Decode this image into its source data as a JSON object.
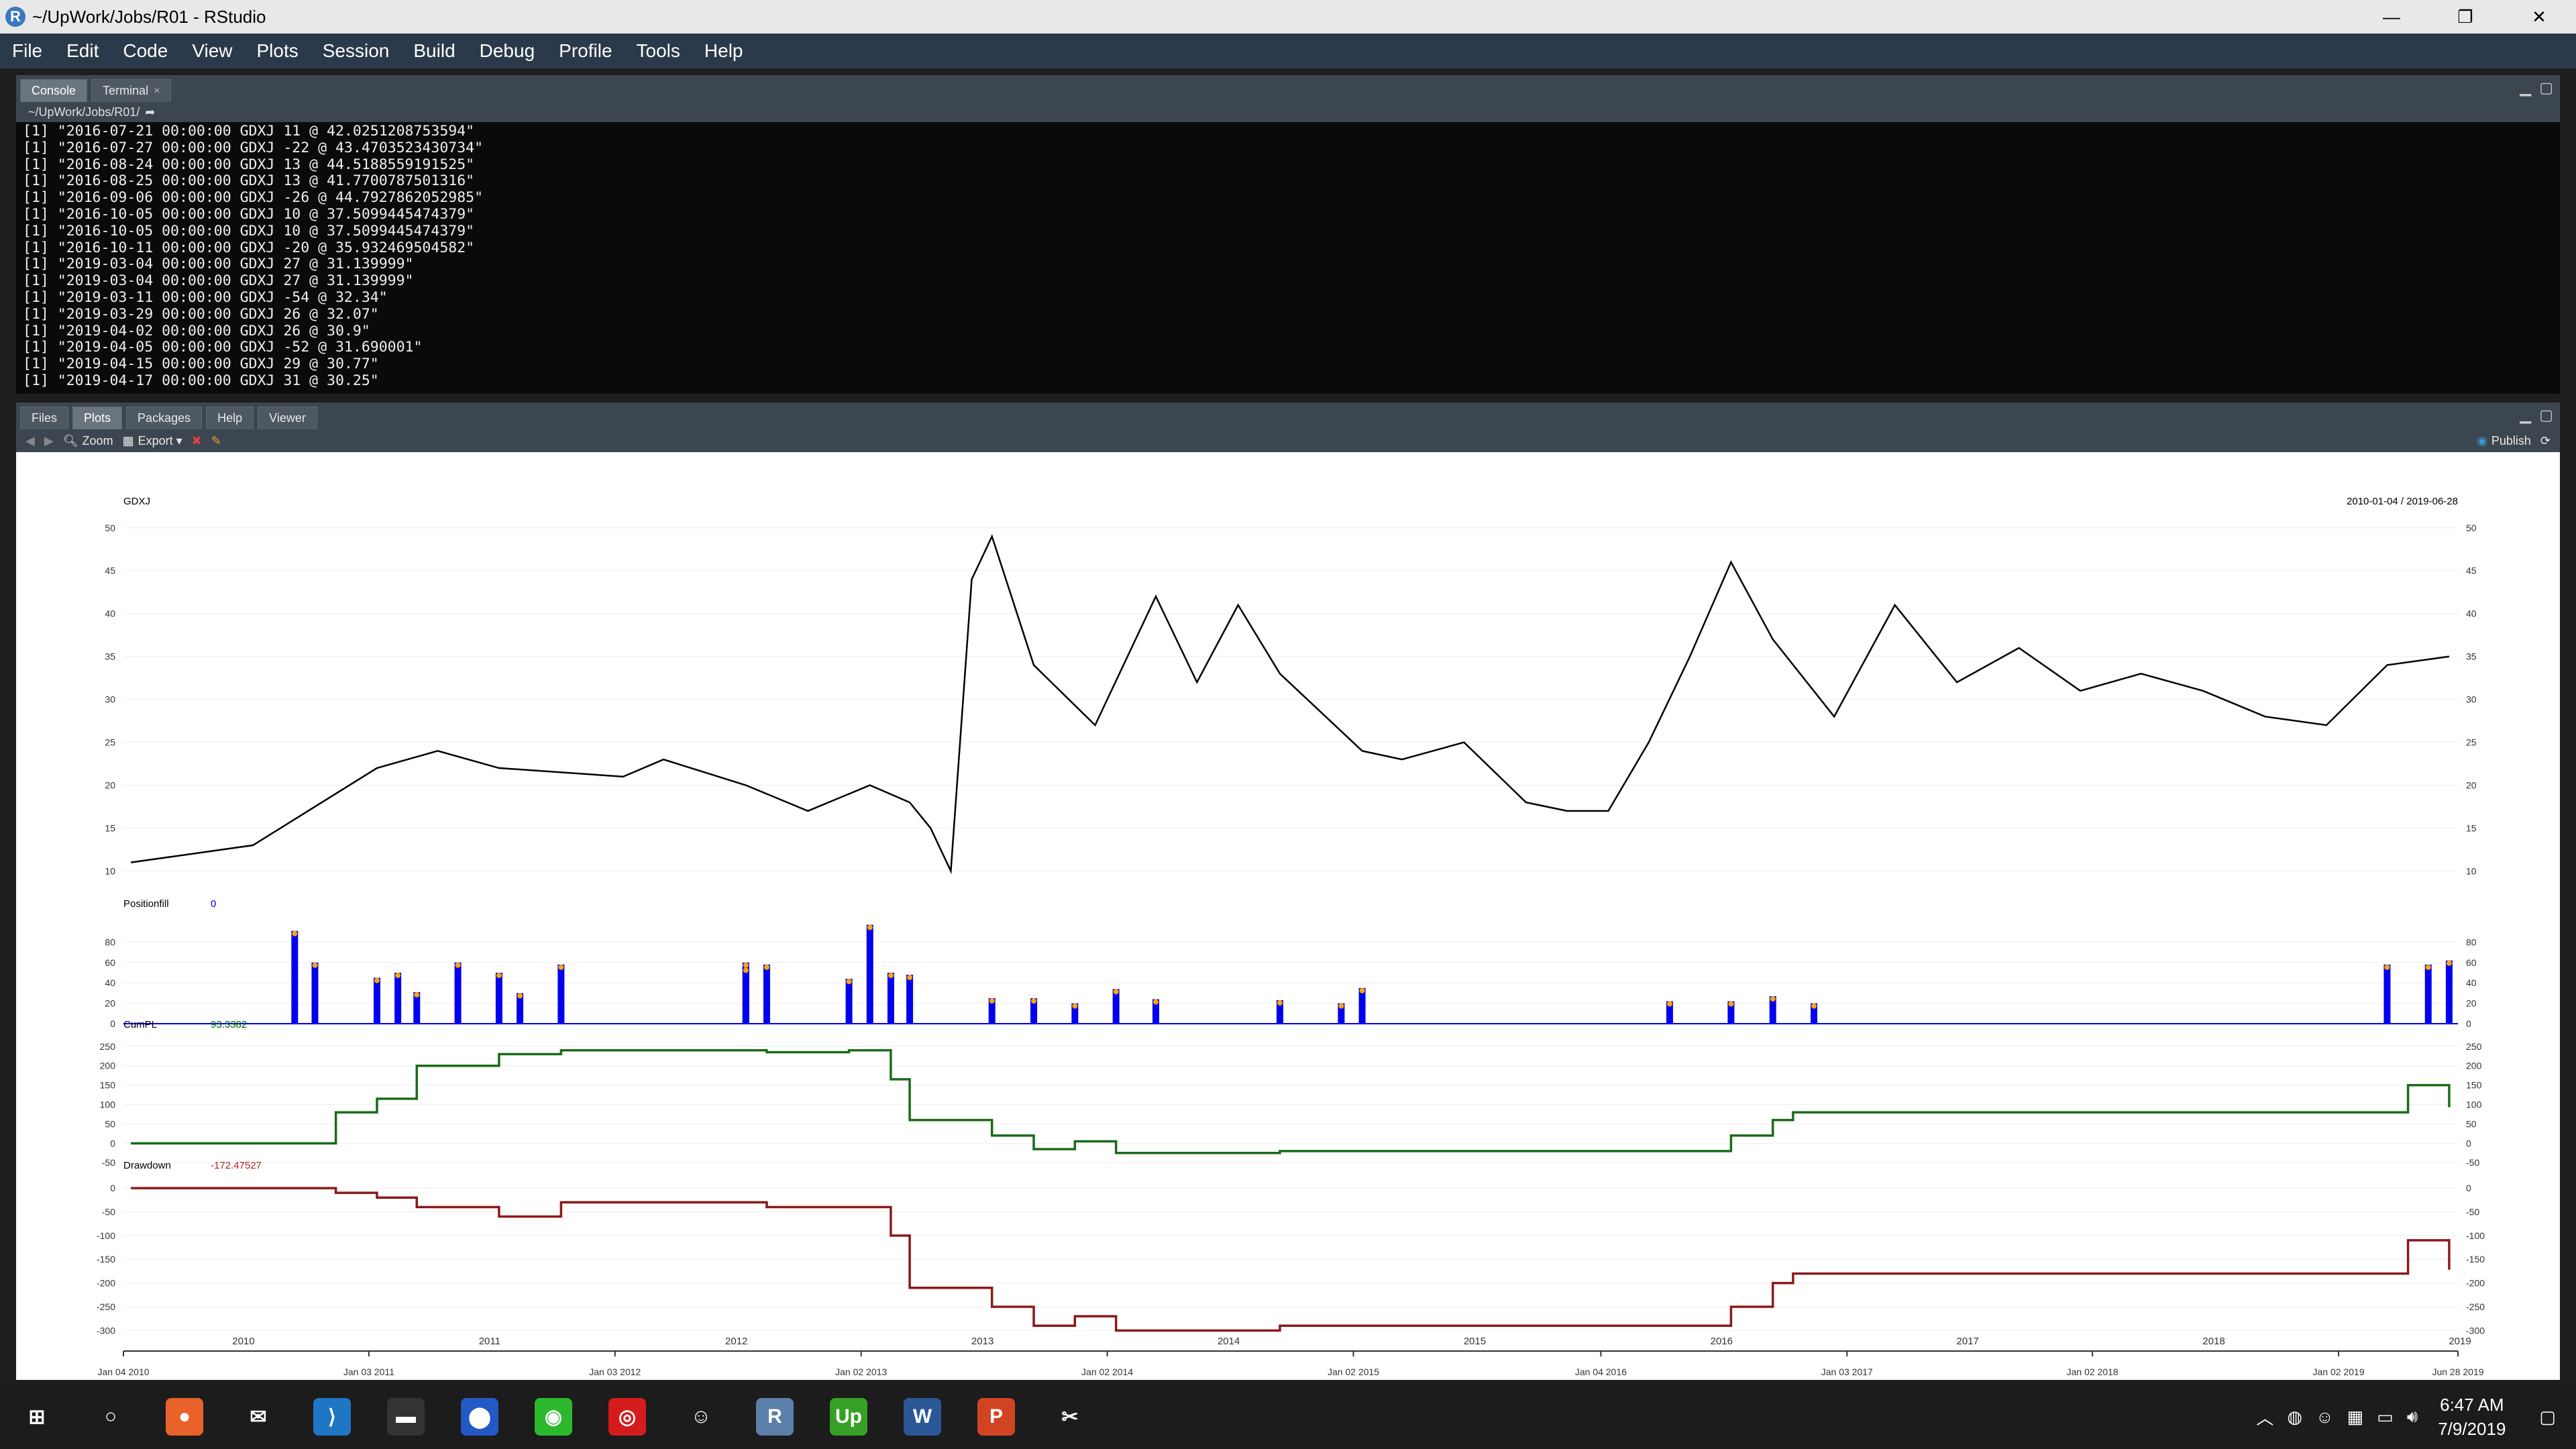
{
  "window": {
    "title": "~/UpWork/Jobs/R01 - RStudio",
    "logo": "R",
    "minimize": "—",
    "maximize": "❐",
    "close": "✕"
  },
  "menu": [
    "File",
    "Edit",
    "Code",
    "View",
    "Plots",
    "Session",
    "Build",
    "Debug",
    "Profile",
    "Tools",
    "Help"
  ],
  "console_tabs": [
    {
      "label": "Console"
    },
    {
      "label": "Terminal",
      "close": "×"
    }
  ],
  "console_path": "~/UpWork/Jobs/R01/",
  "console_lines": [
    "[1] \"2016-07-21 00:00:00 GDXJ 11 @ 42.0251208753594\"",
    "[1] \"2016-07-27 00:00:00 GDXJ -22 @ 43.4703523430734\"",
    "[1] \"2016-08-24 00:00:00 GDXJ 13 @ 44.5188559191525\"",
    "[1] \"2016-08-25 00:00:00 GDXJ 13 @ 41.7700787501316\"",
    "[1] \"2016-09-06 00:00:00 GDXJ -26 @ 44.7927862052985\"",
    "[1] \"2016-10-05 00:00:00 GDXJ 10 @ 37.5099445474379\"",
    "[1] \"2016-10-05 00:00:00 GDXJ 10 @ 37.5099445474379\"",
    "[1] \"2016-10-11 00:00:00 GDXJ -20 @ 35.932469504582\"",
    "[1] \"2019-03-04 00:00:00 GDXJ 27 @ 31.139999\"",
    "[1] \"2019-03-04 00:00:00 GDXJ 27 @ 31.139999\"",
    "[1] \"2019-03-11 00:00:00 GDXJ -54 @ 32.34\"",
    "[1] \"2019-03-29 00:00:00 GDXJ 26 @ 32.07\"",
    "[1] \"2019-04-02 00:00:00 GDXJ 26 @ 30.9\"",
    "[1] \"2019-04-05 00:00:00 GDXJ -52 @ 31.690001\"",
    "[1] \"2019-04-15 00:00:00 GDXJ 29 @ 30.77\"",
    "[1] \"2019-04-17 00:00:00 GDXJ 31 @ 30.25\""
  ],
  "plot_tabs": [
    "Files",
    "Plots",
    "Packages",
    "Help",
    "Viewer"
  ],
  "plot_toolbar": {
    "zoom": "Zoom",
    "export": "Export ▾",
    "publish": "Publish"
  },
  "chart_data": {
    "type": "line",
    "panels": [
      {
        "name": "GDXJ",
        "label_value": "",
        "date_range": "2010-01-04 / 2019-06-28",
        "y_ticks": [
          10,
          15,
          20,
          25,
          30,
          35,
          40,
          45,
          50
        ],
        "ylim": [
          8,
          51
        ],
        "x": [
          "2010-01",
          "2010-07",
          "2011-01",
          "2011-04",
          "2011-07",
          "2012-01",
          "2012-03",
          "2012-07",
          "2012-10",
          "2013-01",
          "2013-03",
          "2013-04",
          "2013-05",
          "2013-06",
          "2013-07",
          "2013-09",
          "2013-12",
          "2014-03",
          "2014-05",
          "2014-07",
          "2014-09",
          "2015-01",
          "2015-03",
          "2015-06",
          "2015-09",
          "2015-11",
          "2016-01",
          "2016-03",
          "2016-05",
          "2016-07",
          "2016-09",
          "2016-12",
          "2017-03",
          "2017-06",
          "2017-09",
          "2017-12",
          "2018-03",
          "2018-06",
          "2018-09",
          "2018-12",
          "2019-03",
          "2019-06"
        ],
        "values": [
          11,
          13,
          22,
          24,
          22,
          21,
          23,
          20,
          17,
          20,
          18,
          15,
          10,
          44,
          49,
          34,
          27,
          42,
          32,
          41,
          33,
          24,
          23,
          25,
          18,
          17,
          17,
          25,
          35,
          46,
          37,
          28,
          41,
          32,
          36,
          31,
          33,
          31,
          28,
          27,
          34,
          35
        ],
        "color": "#000000"
      },
      {
        "name": "Positionfill",
        "label_value": "0",
        "label_color": "#0000cc",
        "y_ticks": [
          0,
          20,
          40,
          60,
          80
        ],
        "ylim": [
          0,
          100
        ],
        "x": [
          "2010-09",
          "2010-10",
          "2011-01",
          "2011-02",
          "2011-03",
          "2011-05",
          "2011-07",
          "2011-08",
          "2011-10",
          "2012-07",
          "2012-08",
          "2012-07",
          "2012-12",
          "2013-01",
          "2013-02",
          "2013-03",
          "2013-07",
          "2013-09",
          "2013-11",
          "2014-01",
          "2014-03",
          "2014-09",
          "2014-12",
          "2015-01",
          "2016-04",
          "2016-07",
          "2016-09",
          "2016-11",
          "2019-03",
          "2019-05",
          "2019-06"
        ],
        "values": [
          91,
          60,
          45,
          50,
          31,
          60,
          50,
          30,
          58,
          60,
          58,
          55,
          44,
          97,
          50,
          48,
          25,
          25,
          20,
          34,
          24,
          23,
          20,
          35,
          22,
          22,
          27,
          20,
          58,
          58,
          62
        ],
        "color": "#0000ee"
      },
      {
        "name": "CumPL",
        "label_value": "93.3382",
        "label_color": "#006400",
        "y_ticks": [
          -50,
          0,
          50,
          100,
          150,
          200,
          250
        ],
        "ylim": [
          -60,
          260
        ],
        "x": [
          "2010-01",
          "2010-09",
          "2010-11",
          "2011-01",
          "2011-03",
          "2011-07",
          "2011-10",
          "2012-07",
          "2012-08",
          "2012-12",
          "2013-02",
          "2013-03",
          "2013-06",
          "2013-07",
          "2013-09",
          "2013-11",
          "2014-01",
          "2014-06",
          "2014-09",
          "2016-04",
          "2016-07",
          "2016-09",
          "2016-10",
          "2019-03",
          "2019-04",
          "2019-06"
        ],
        "values": [
          0,
          0,
          80,
          115,
          200,
          230,
          240,
          240,
          235,
          240,
          165,
          60,
          60,
          20,
          -15,
          5,
          -25,
          -25,
          -20,
          -20,
          20,
          60,
          80,
          80,
          150,
          93
        ],
        "color": "#1a6b1a"
      },
      {
        "name": "Drawdown",
        "label_value": "-172.47527",
        "label_color": "#b22222",
        "y_ticks": [
          0,
          -50,
          -100,
          -150,
          -200,
          -250,
          -300
        ],
        "y_tick_labels": [
          "0",
          "-50",
          "-100",
          "-150",
          "-200",
          "-250",
          "-300"
        ],
        "ylim": [
          -315,
          10
        ],
        "x": [
          "2010-01",
          "2010-09",
          "2010-11",
          "2011-01",
          "2011-03",
          "2011-07",
          "2011-10",
          "2012-07",
          "2012-08",
          "2012-12",
          "2013-02",
          "2013-03",
          "2013-06",
          "2013-07",
          "2013-09",
          "2013-11",
          "2014-01",
          "2014-06",
          "2014-09",
          "2016-04",
          "2016-07",
          "2016-09",
          "2016-10",
          "2019-03",
          "2019-04",
          "2019-06"
        ],
        "values": [
          0,
          0,
          -10,
          -20,
          -40,
          -60,
          -30,
          -30,
          -40,
          -40,
          -100,
          -210,
          -210,
          -250,
          -290,
          -270,
          -300,
          -300,
          -290,
          -290,
          -250,
          -200,
          -180,
          -180,
          -110,
          -172
        ],
        "color": "#8b1a1a"
      }
    ],
    "x_year_labels": [
      "2010",
      "2011",
      "2012",
      "2013",
      "2014",
      "2015",
      "2016",
      "2017",
      "2018",
      "2019"
    ],
    "x_date_labels": [
      "Jan 04 2010",
      "Jan 03 2011",
      "Jan 03 2012",
      "Jan 02 2013",
      "Jan 02 2014",
      "Jan 02 2015",
      "Jan 04 2016",
      "Jan 03 2017",
      "Jan 02 2018",
      "Jan 02 2019",
      "Jun 28 2019"
    ]
  },
  "taskbar": {
    "time": "6:47 AM",
    "date": "7/9/2019"
  },
  "taskbar_icons": [
    {
      "name": "windows-start-icon",
      "glyph": "⊞",
      "color": "#1c1c1c"
    },
    {
      "name": "cortana-search-icon",
      "glyph": "○",
      "color": "#1c1c1c"
    },
    {
      "name": "firefox-icon",
      "glyph": "●",
      "color": "#e8622a"
    },
    {
      "name": "mail-icon",
      "glyph": "✉",
      "color": "#1c1c1c"
    },
    {
      "name": "vscode-icon",
      "glyph": "⟩",
      "color": "#1f76c3"
    },
    {
      "name": "terminal-icon",
      "glyph": "▬",
      "color": "#333333"
    },
    {
      "name": "maps-icon",
      "glyph": "⬤",
      "color": "#2458c4"
    },
    {
      "name": "wechat-icon",
      "glyph": "◉",
      "color": "#2cb82c"
    },
    {
      "name": "adobe-icon",
      "glyph": "◎",
      "color": "#d41c1c"
    },
    {
      "name": "discord-icon",
      "glyph": "☺",
      "color": "#1c1c1c"
    },
    {
      "name": "rstudio-icon",
      "glyph": "R",
      "color": "#5b7fa8"
    },
    {
      "name": "upwork-icon",
      "glyph": "Up",
      "color": "#37a026"
    },
    {
      "name": "word-icon",
      "glyph": "W",
      "color": "#2b5797"
    },
    {
      "name": "powerpoint-icon",
      "glyph": "P",
      "color": "#d04423"
    },
    {
      "name": "snipping-icon",
      "glyph": "✂",
      "color": "#1c1c1c"
    }
  ]
}
